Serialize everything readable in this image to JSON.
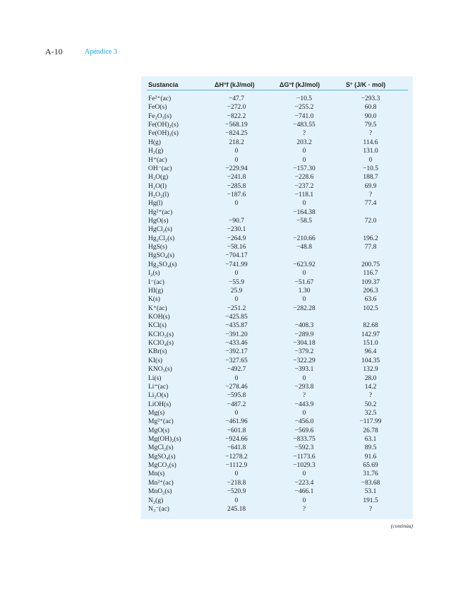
{
  "page": {
    "number": "A-10",
    "section": "Apéndice 3",
    "continued": "(continúa)"
  },
  "table": {
    "headers": [
      "Sustancia",
      "ΔH°f (kJ/mol)",
      "ΔG°f (kJ/mol)",
      "S° (J/K · mol)"
    ],
    "rows": [
      [
        "Fe²⁺(ac)",
        "−47.7",
        "−10.5",
        "−293.3"
      ],
      [
        "FeO(s)",
        "−272.0",
        "−255.2",
        "60.8"
      ],
      [
        "Fe₂O₃(s)",
        "−822.2",
        "−741.0",
        "90.0"
      ],
      [
        "Fe(OH)₂(s)",
        "−568.19",
        "−483.55",
        "79.5"
      ],
      [
        "Fe(OH)₃(s)",
        "−824.25",
        "?",
        "?"
      ],
      [
        "H(g)",
        "218.2",
        "203.2",
        "114.6"
      ],
      [
        "H₂(g)",
        "0",
        "0",
        "131.0"
      ],
      [
        "H⁺(ac)",
        "0",
        "0",
        "0"
      ],
      [
        "OH⁻(ac)",
        "−229.94",
        "−157.30",
        "−10.5"
      ],
      [
        "H₂O(g)",
        "−241.8",
        "−228.6",
        "188.7"
      ],
      [
        "H₂O(l)",
        "−285.8",
        "−237.2",
        "69.9"
      ],
      [
        "H₂O₂(l)",
        "−187.6",
        "−118.1",
        "?"
      ],
      [
        "Hg(l)",
        "0",
        "0",
        "77.4"
      ],
      [
        "Hg²⁺(ac)",
        "",
        "−164.38",
        ""
      ],
      [
        "HgO(s)",
        "−90.7",
        "−58.5",
        "72.0"
      ],
      [
        "HgCl₂(s)",
        "−230.1",
        "",
        ""
      ],
      [
        "Hg₂Cl₂(s)",
        "−264.9",
        "−210.66",
        "196.2"
      ],
      [
        "HgS(s)",
        "−58.16",
        "−48.8",
        "77.8"
      ],
      [
        "HgSO₄(s)",
        "−704.17",
        "",
        ""
      ],
      [
        "Hg₂SO₄(s)",
        "−741.99",
        "−623.92",
        "200.75"
      ],
      [
        "I₂(s)",
        "0",
        "0",
        "116.7"
      ],
      [
        "I⁻(ac)",
        "−55.9",
        "−51.67",
        "109.37"
      ],
      [
        "HI(g)",
        "25.9",
        "1.30",
        "206.3"
      ],
      [
        "K(s)",
        "0",
        "0",
        "63.6"
      ],
      [
        "K⁺(ac)",
        "−251.2",
        "−282.28",
        "102.5"
      ],
      [
        "KOH(s)",
        "−425.85",
        "",
        ""
      ],
      [
        "KCl(s)",
        "−435.87",
        "−408.3",
        "82.68"
      ],
      [
        "KClO₃(s)",
        "−391.20",
        "−289.9",
        "142.97"
      ],
      [
        "KClO₄(s)",
        "−433.46",
        "−304.18",
        "151.0"
      ],
      [
        "KBr(s)",
        "−392.17",
        "−379.2",
        "96.4"
      ],
      [
        "KI(s)",
        "−327.65",
        "−322.29",
        "104.35"
      ],
      [
        "KNO₃(s)",
        "−492.7",
        "−393.1",
        "132.9"
      ],
      [
        "Li(s)",
        "0",
        "0",
        "28.0"
      ],
      [
        "Li⁺(ac)",
        "−278.46",
        "−293.8",
        "14.2"
      ],
      [
        "Li₂O(s)",
        "−595.8",
        "?",
        "?"
      ],
      [
        "LiOH(s)",
        "−487.2",
        "−443.9",
        "50.2"
      ],
      [
        "Mg(s)",
        "0",
        "0",
        "32.5"
      ],
      [
        "Mg²⁺(ac)",
        "−461.96",
        "−456.0",
        "−117.99"
      ],
      [
        "MgO(s)",
        "−601.8",
        "−569.6",
        "26.78"
      ],
      [
        "Mg(OH)₂(s)",
        "−924.66",
        "−833.75",
        "63.1"
      ],
      [
        "MgCl₂(s)",
        "−641.8",
        "−592.3",
        "89.5"
      ],
      [
        "MgSO₄(s)",
        "−1278.2",
        "−1173.6",
        "91.6"
      ],
      [
        "MgCO₃(s)",
        "−1112.9",
        "−1029.3",
        "65.69"
      ],
      [
        "Mn(s)",
        "0",
        "0",
        "31.76"
      ],
      [
        "Mn²⁺(ac)",
        "−218.8",
        "−223.4",
        "−83.68"
      ],
      [
        "MnO₂(s)",
        "−520.9",
        "−466.1",
        "53.1"
      ],
      [
        "N₂(g)",
        "0",
        "0",
        "191.5"
      ],
      [
        "N₃⁻(ac)",
        "245.18",
        "?",
        "?"
      ]
    ]
  }
}
